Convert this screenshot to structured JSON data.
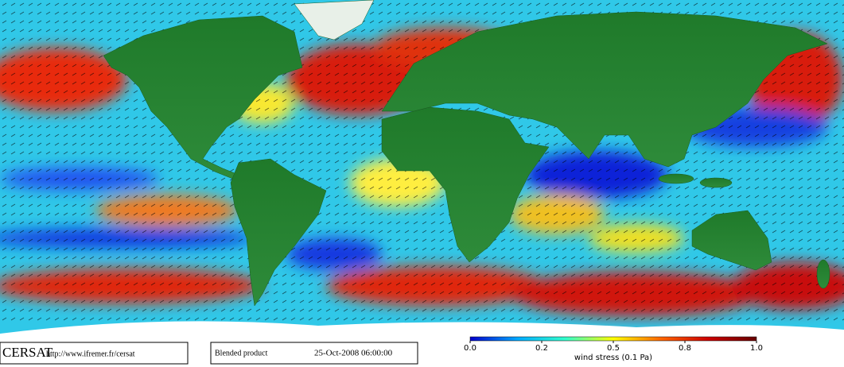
{
  "footer": {
    "logo": "CERSAT",
    "url": "http://www.ifremer.fr/cersat",
    "product": "Blended product",
    "date": "25-Oct-2008 06:00:00"
  },
  "colorbar": {
    "label": "wind stress (0.1 Pa)",
    "ticks": [
      {
        "value": 0,
        "label": "0.0"
      },
      0.2,
      0.5,
      0.8,
      {
        "value": 1,
        "label": "1.0"
      }
    ],
    "colors": [
      "#0000cc",
      "#00aaff",
      "#33ffcc",
      "#ffff00",
      "#ff6600",
      "#cc0000",
      "#660000"
    ]
  }
}
